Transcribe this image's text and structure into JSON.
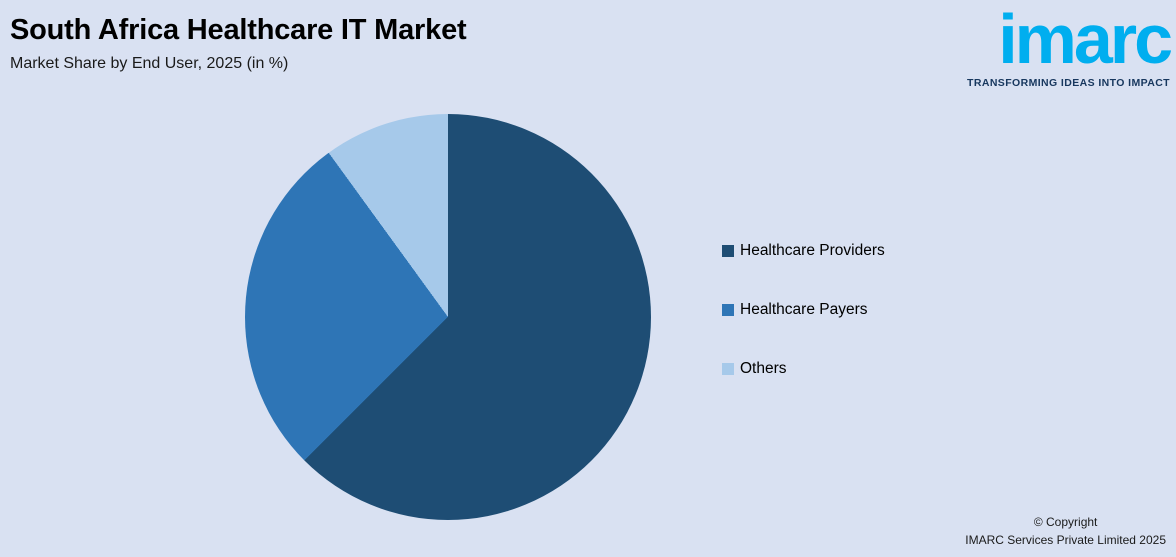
{
  "header": {
    "title": "South Africa Healthcare IT Market",
    "subtitle": "Market Share by End User, 2025 (in %)"
  },
  "logo": {
    "brand": "imarc",
    "tagline": "TRANSFORMING IDEAS INTO IMPACT"
  },
  "chart_data": {
    "type": "pie",
    "title": "Market Share by End User, 2025 (in %)",
    "categories": [
      "Healthcare Providers",
      "Healthcare Payers",
      "Others"
    ],
    "values": [
      62.5,
      27.5,
      10.0
    ],
    "colors": [
      "#1e4d74",
      "#2e75b6",
      "#a6c9ea"
    ],
    "start_angle_deg": 0,
    "direction": "clockwise",
    "legend_position": "right"
  },
  "legend": {
    "items": [
      {
        "label": "Healthcare Providers",
        "color": "#1e4d74"
      },
      {
        "label": "Healthcare Payers",
        "color": "#2e75b6"
      },
      {
        "label": "Others",
        "color": "#a6c9ea"
      }
    ]
  },
  "footer": {
    "copyright_line1": "© Copyright",
    "copyright_line2": "IMARC Services Private Limited 2025"
  },
  "colors": {
    "background": "#d9e1f2",
    "brand_cyan": "#00aeef",
    "tagline_navy": "#17375e"
  }
}
